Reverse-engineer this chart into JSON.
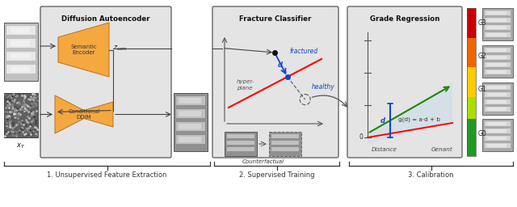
{
  "fig_width": 6.4,
  "fig_height": 2.56,
  "dpi": 100,
  "bg_color": "#ffffff",
  "panel_bg": "#e4e4e4",
  "orange_fill": "#f5a840",
  "panel1_title": "Diffusion Autoencoder",
  "panel2_title": "Fracture Classifier",
  "panel3_title": "Grade Regression",
  "label1": "1. Unsupervised Feature Extraction",
  "label2": "2. Supervised Training",
  "label3": "3. Calibration",
  "sem_enc_label": "Semantic\nEncoder",
  "cond_ddim_label": "Conditional\nDDIM",
  "zsem_label": "$z_{sem}$",
  "xt_label": "$x_T$",
  "fractured_label": "fractured",
  "healthy_label": "healthy",
  "hyperplane_label": "hyper-\nplane",
  "d_label1": "d",
  "counterfactual_label": "Counterfactual",
  "gd_label": "g(d) = a·d + b",
  "d_label2": "d",
  "zero_label": "0",
  "distance_label": "Distance",
  "genant_label": "Genant",
  "g0": "G0",
  "g1": "G1",
  "g2": "G2",
  "g3": "G3"
}
